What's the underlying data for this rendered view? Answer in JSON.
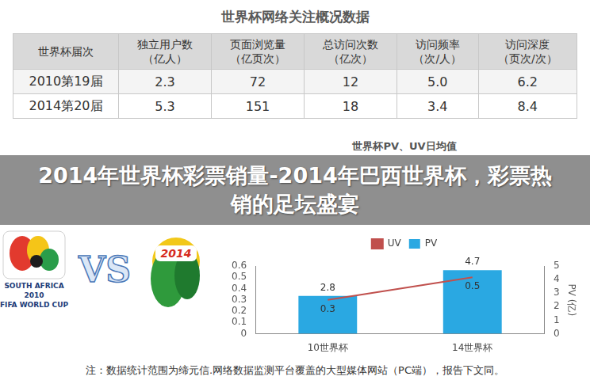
{
  "table": {
    "title": "世界杯网络关注概况数据",
    "header": [
      "世界杯届次",
      "独立用户数（亿人）",
      "页面浏览量（亿页次）",
      "总访问次数（亿次）",
      "访问频率（次/人）",
      "访问深度（页次/次）"
    ],
    "rows": [
      [
        "2010第19届",
        "2.3",
        "72",
        "12",
        "5.0",
        "6.2"
      ],
      [
        "2014第20届",
        "5.3",
        "151",
        "18",
        "3.4",
        "8.4"
      ]
    ]
  },
  "chart_data": {
    "type": "bar",
    "title": "世界杯PV、UV日均值",
    "categories": [
      "10世界杯",
      "14世界杯"
    ],
    "series": [
      {
        "name": "PV",
        "type": "bar",
        "color": "#2aa8e2",
        "values": [
          2.8,
          4.7
        ],
        "axis": "y2"
      },
      {
        "name": "UV",
        "type": "line",
        "color": "#c0504d",
        "values": [
          0.3,
          0.5
        ]
      }
    ],
    "ylim": [
      0,
      0.6
    ],
    "yticks": [
      0,
      0.1,
      0.2,
      0.3,
      0.4,
      0.5,
      0.6
    ],
    "y2lim": [
      0,
      5
    ],
    "y2ticks": [
      0,
      1,
      2,
      3,
      4,
      5
    ],
    "y2_label": "PV (亿)",
    "grid": false,
    "legend": "top",
    "data_labels": true
  },
  "banner": "2014年世界杯彩票销量-2014年巴西世界杯，彩票热销的足坛盛宴",
  "logos": {
    "left": [
      "SOUTH AFRICA",
      "2010",
      "FIFA WORLD CUP"
    ],
    "vs": "VS",
    "right": "2014"
  },
  "footnote": "注：数据统计范围为缔元信.网络数据监测平台覆盖的大型媒体网站（PC端），报告下文同。"
}
